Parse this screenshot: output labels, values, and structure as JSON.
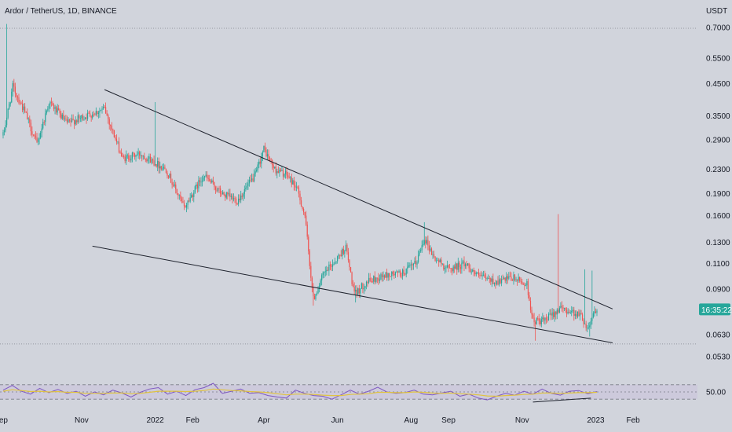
{
  "header": {
    "symbol_title": "Ardor / TetherUS, 1D, BINANCE",
    "currency": "USDT"
  },
  "colors": {
    "background": "#d1d4dc",
    "up": "#26a69a",
    "down": "#ef5350",
    "trendline": "#1e222d",
    "rsi_line": "#7e57c2",
    "rsi_ma": "#e0c341",
    "price_badge": "#26a69a"
  },
  "chart_data": [
    {
      "type": "candlestick",
      "title": "Ardor / TetherUS, 1D, BINANCE",
      "y_scale": "log",
      "ylim": [
        0.048,
        0.74
      ],
      "y_ticks": [
        "0.7000",
        "0.5500",
        "0.4500",
        "0.3500",
        "0.2900",
        "0.2300",
        "0.1900",
        "0.1600",
        "0.1300",
        "0.1100",
        "0.0900",
        "0.0630",
        "0.0530"
      ],
      "x_ticks": [
        "Sep",
        "Nov",
        "2022",
        "Feb",
        "Apr",
        "Jun",
        "Aug",
        "Sep",
        "Nov",
        "2023",
        "Feb"
      ],
      "current_price_label": "16:35:22",
      "current_price": 0.0765,
      "grid": false,
      "trendlines": [
        {
          "name": "upper",
          "from": [
            "2021-11-20",
            0.43
          ],
          "to": [
            "2023-01-15",
            0.077
          ]
        },
        {
          "name": "lower",
          "from": [
            "2021-11-10",
            0.126
          ],
          "to": [
            "2023-01-15",
            0.059
          ]
        }
      ],
      "anchors": [
        [
          "2021-08-28",
          0.3
        ],
        [
          "2021-09-05",
          0.44
        ],
        [
          "2021-09-15",
          0.36
        ],
        [
          "2021-09-25",
          0.28
        ],
        [
          "2021-10-05",
          0.39
        ],
        [
          "2021-10-20",
          0.33
        ],
        [
          "2021-11-05",
          0.35
        ],
        [
          "2021-11-20",
          0.37
        ],
        [
          "2021-12-05",
          0.25
        ],
        [
          "2021-12-20",
          0.26
        ],
        [
          "2022-01-10",
          0.23
        ],
        [
          "2022-01-25",
          0.17
        ],
        [
          "2022-02-10",
          0.22
        ],
        [
          "2022-02-25",
          0.19
        ],
        [
          "2022-03-10",
          0.18
        ],
        [
          "2022-03-25",
          0.22
        ],
        [
          "2022-04-01",
          0.27
        ],
        [
          "2022-04-10",
          0.23
        ],
        [
          "2022-04-20",
          0.22
        ],
        [
          "2022-04-28",
          0.2
        ],
        [
          "2022-05-05",
          0.16
        ],
        [
          "2022-05-12",
          0.083
        ],
        [
          "2022-05-20",
          0.1
        ],
        [
          "2022-06-01",
          0.115
        ],
        [
          "2022-06-08",
          0.125
        ],
        [
          "2022-06-15",
          0.086
        ],
        [
          "2022-06-25",
          0.095
        ],
        [
          "2022-07-10",
          0.1
        ],
        [
          "2022-07-25",
          0.102
        ],
        [
          "2022-08-05",
          0.11
        ],
        [
          "2022-08-12",
          0.135
        ],
        [
          "2022-08-20",
          0.115
        ],
        [
          "2022-09-01",
          0.105
        ],
        [
          "2022-09-15",
          0.11
        ],
        [
          "2022-09-25",
          0.1
        ],
        [
          "2022-10-10",
          0.095
        ],
        [
          "2022-10-25",
          0.098
        ],
        [
          "2022-11-05",
          0.093
        ],
        [
          "2022-11-10",
          0.07
        ],
        [
          "2022-11-20",
          0.07
        ],
        [
          "2022-12-01",
          0.077
        ],
        [
          "2022-12-10",
          0.076
        ],
        [
          "2022-12-20",
          0.073
        ],
        [
          "2022-12-25",
          0.066
        ],
        [
          "2022-12-31",
          0.076
        ]
      ]
    },
    {
      "type": "line",
      "title": "",
      "ylim": [
        0,
        100
      ],
      "y_ticks": [
        "50.00"
      ],
      "band": [
        30,
        70
      ],
      "x_range": [
        "2021-08-28",
        "2023-01-02"
      ],
      "series": [
        {
          "values": [
            55,
            68,
            52,
            44,
            60,
            48,
            57,
            46,
            52,
            38,
            50,
            42,
            55,
            47,
            36,
            49,
            58,
            62,
            44,
            52,
            40,
            56,
            62,
            74,
            46,
            52,
            58,
            46,
            48,
            40,
            36,
            33,
            55,
            46,
            40,
            38,
            30,
            42,
            55,
            44,
            52,
            63,
            50,
            46,
            48,
            55,
            44,
            42,
            47,
            52,
            38,
            44,
            33,
            28,
            38,
            46,
            41,
            52,
            44,
            58,
            46,
            41,
            52,
            54,
            45,
            51
          ]
        },
        {
          "values": [
            52,
            56,
            54,
            51,
            52,
            50,
            51,
            49,
            49,
            46,
            46,
            46,
            47,
            47,
            45,
            46,
            49,
            52,
            52,
            52,
            51,
            52,
            54,
            58,
            56,
            54,
            53,
            51,
            50,
            48,
            45,
            42,
            44,
            44,
            43,
            41,
            40,
            40,
            43,
            44,
            45,
            49,
            49,
            48,
            48,
            50,
            49,
            47,
            46,
            47,
            45,
            44,
            42,
            39,
            38,
            40,
            41,
            43,
            44,
            47,
            47,
            46,
            47,
            48,
            48,
            49
          ]
        }
      ],
      "trendline": {
        "from": [
          "2022-11-10",
          22
        ],
        "to": [
          "2022-12-28",
          33
        ]
      }
    }
  ]
}
